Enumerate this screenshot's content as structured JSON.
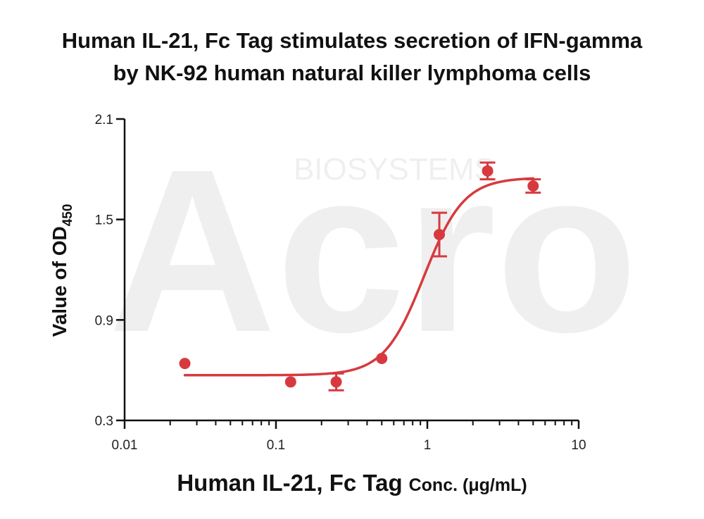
{
  "title_lines": [
    "Human IL-21, Fc Tag stimulates secretion of IFN-gamma",
    "by NK-92 human natural killer lymphoma cells"
  ],
  "watermark": {
    "logo_text": "Acro",
    "sub_text": "BIOSYSTEMS"
  },
  "xaxis": {
    "title_main": "Human IL-21, Fc Tag",
    "title_suffix": "Conc. (μg/mL)",
    "scale": "log",
    "range": [
      0.01,
      10
    ],
    "ticks": [
      0.01,
      0.1,
      1,
      10
    ],
    "tick_labels": [
      "0.01",
      "0.1",
      "1",
      "10"
    ]
  },
  "yaxis": {
    "title_main": "Value of OD",
    "title_sub": "450",
    "scale": "linear",
    "range": [
      0.3,
      2.1
    ],
    "ticks": [
      0.3,
      0.9,
      1.5,
      2.1
    ],
    "tick_labels": [
      "0.3",
      "0.9",
      "1.5",
      "2.1"
    ]
  },
  "chart_data": {
    "type": "scatter",
    "title": "Human IL-21, Fc Tag stimulates secretion of IFN-gamma by NK-92 human natural killer lymphoma cells",
    "xlabel": "Human IL-21, Fc Tag Conc. (μg/mL)",
    "ylabel": "Value of OD450",
    "xscale": "log",
    "xlim": [
      0.01,
      10
    ],
    "ylim": [
      0.3,
      2.1
    ],
    "grid": false,
    "legend": "none",
    "color": "#d63a3f",
    "series": [
      {
        "points": [
          {
            "x": 0.025,
            "y": 0.64,
            "err": 0.0
          },
          {
            "x": 0.125,
            "y": 0.53,
            "err": 0.0
          },
          {
            "x": 0.25,
            "y": 0.53,
            "err": 0.05
          },
          {
            "x": 0.5,
            "y": 0.67,
            "err": 0.0
          },
          {
            "x": 1.2,
            "y": 1.41,
            "err": 0.13
          },
          {
            "x": 2.5,
            "y": 1.79,
            "err": 0.05
          },
          {
            "x": 5.0,
            "y": 1.7,
            "err": 0.04
          }
        ],
        "fit": {
          "model": "4PL",
          "bottom": 0.57,
          "top": 1.75,
          "ec50": 0.95,
          "hill": 3.3,
          "x_range": [
            0.025,
            5.0
          ]
        }
      }
    ]
  }
}
